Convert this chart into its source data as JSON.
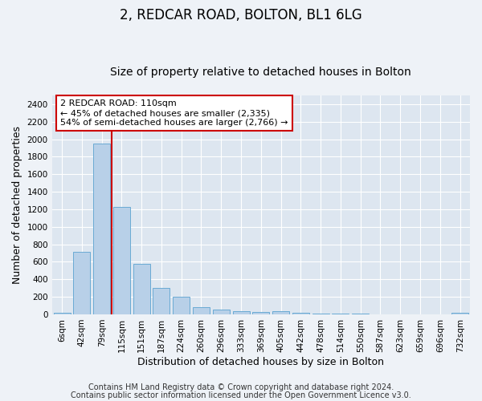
{
  "title": "2, REDCAR ROAD, BOLTON, BL1 6LG",
  "subtitle": "Size of property relative to detached houses in Bolton",
  "xlabel": "Distribution of detached houses by size in Bolton",
  "ylabel": "Number of detached properties",
  "categories": [
    "6sqm",
    "42sqm",
    "79sqm",
    "115sqm",
    "151sqm",
    "187sqm",
    "224sqm",
    "260sqm",
    "296sqm",
    "333sqm",
    "369sqm",
    "405sqm",
    "442sqm",
    "478sqm",
    "514sqm",
    "550sqm",
    "587sqm",
    "623sqm",
    "659sqm",
    "696sqm",
    "732sqm"
  ],
  "values": [
    18,
    710,
    1950,
    1230,
    575,
    305,
    200,
    85,
    50,
    35,
    28,
    40,
    18,
    12,
    8,
    5,
    3,
    2,
    2,
    1,
    15
  ],
  "bar_color": "#b8d0e8",
  "bar_edge_color": "#6aaad4",
  "vline_x_idx": 2,
  "vline_color": "#cc0000",
  "annotation_text": "2 REDCAR ROAD: 110sqm\n← 45% of detached houses are smaller (2,335)\n54% of semi-detached houses are larger (2,766) →",
  "annotation_box_facecolor": "#ffffff",
  "annotation_box_edgecolor": "#cc0000",
  "ylim": [
    0,
    2500
  ],
  "yticks": [
    0,
    200,
    400,
    600,
    800,
    1000,
    1200,
    1400,
    1600,
    1800,
    2000,
    2200,
    2400
  ],
  "footer1": "Contains HM Land Registry data © Crown copyright and database right 2024.",
  "footer2": "Contains public sector information licensed under the Open Government Licence v3.0.",
  "bg_color": "#eef2f7",
  "plot_bg_color": "#dde6f0",
  "title_fontsize": 12,
  "subtitle_fontsize": 10,
  "ylabel_fontsize": 9,
  "xlabel_fontsize": 9,
  "tick_fontsize": 7.5,
  "footer_fontsize": 7,
  "annot_fontsize": 8
}
